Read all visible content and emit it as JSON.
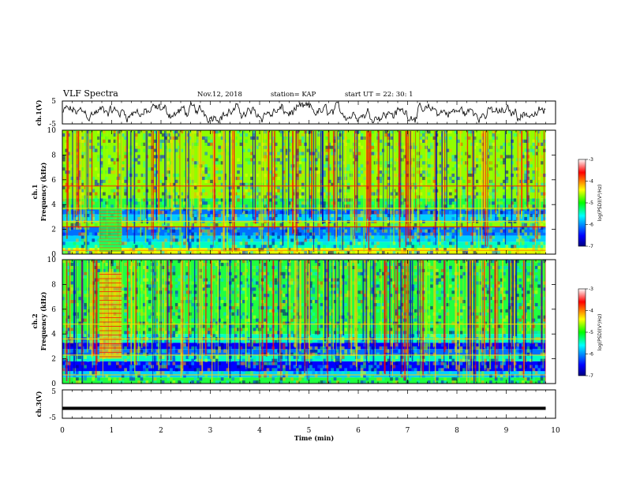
{
  "header": {
    "title": "VLF Spectra",
    "date": "Nov.12, 2018",
    "station": "station= KAP",
    "start": "start  UT =   22: 30: 1"
  },
  "chart_data": [
    {
      "type": "line",
      "ylabel": "ch.1(V)",
      "ylim": [
        -5,
        5
      ],
      "yticks": [
        "5",
        "-5"
      ],
      "xlim": [
        0,
        10
      ],
      "description_values": "noisy waveform oscillating roughly between -4 and 4 V over 0–9.8 min"
    },
    {
      "type": "heatmap",
      "ylabel": "ch.1\nFrequency (kHz)",
      "ylim": [
        0,
        10
      ],
      "yticks": [
        "0",
        "2",
        "4",
        "6",
        "8",
        "10"
      ],
      "xlim": [
        0,
        10
      ],
      "data_extent_min": 9.8,
      "colorbar": {
        "label": "log(PSD)(V²/Hz)",
        "range": [
          -7,
          -3
        ],
        "ticks": [
          "-3",
          "-4",
          "-5",
          "-6",
          "-7"
        ]
      }
    },
    {
      "type": "heatmap",
      "ylabel": "ch.2\nFrequency (kHz)",
      "ylim": [
        0,
        10
      ],
      "yticks": [
        "0",
        "2",
        "4",
        "6",
        "8",
        "10"
      ],
      "xlim": [
        0,
        10
      ],
      "data_extent_min": 9.8,
      "colorbar": {
        "label": "log(PSD)(V²/Hz)",
        "range": [
          -7,
          -3
        ],
        "ticks": [
          "-3",
          "-4",
          "-5",
          "-6",
          "-7"
        ]
      }
    },
    {
      "type": "line",
      "ylabel": "ch.3(V)",
      "ylim": [
        -5,
        5
      ],
      "yticks": [
        "5",
        "-5"
      ],
      "xlim": [
        0,
        10
      ],
      "description_values": "flat line at about -1.5 V from 0 to 9.8 min"
    }
  ],
  "xaxis": {
    "label": "Time (min)",
    "ticks": [
      "0",
      "1",
      "2",
      "3",
      "4",
      "5",
      "6",
      "7",
      "8",
      "9",
      "10"
    ]
  },
  "ch3_level": -1.5,
  "colors": {
    "axis": "#000000",
    "background": "#ffffff"
  }
}
